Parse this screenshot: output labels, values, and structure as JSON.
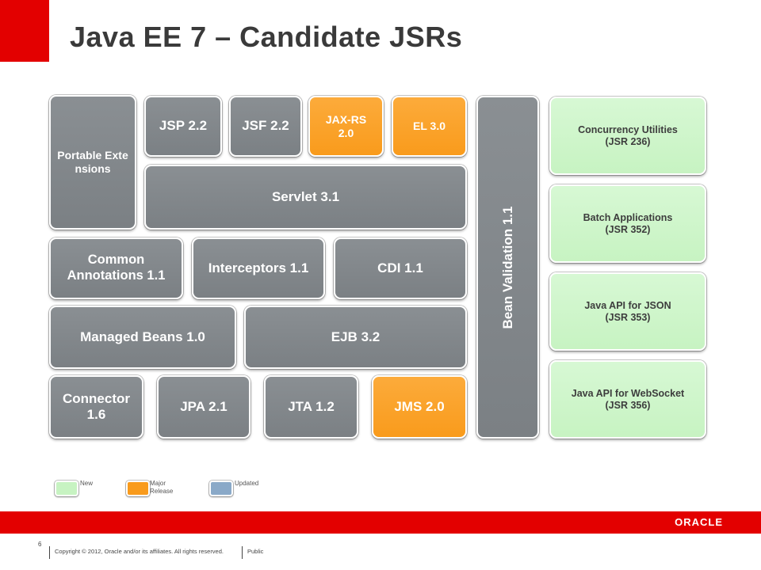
{
  "slide": {
    "title": "Java EE 7 – Candidate JSRs",
    "page_number": "6",
    "copyright": "Copyright © 2012, Oracle and/or its affiliates. All rights reserved.",
    "classification": "Public",
    "logo": "ORACLE"
  },
  "colors": {
    "new": "#c7f3c2",
    "major_release": "#f99b1c",
    "updated": "#8aa9c8",
    "gray_box": "#7f8488",
    "brand_red": "#e30000"
  },
  "boxes": {
    "portable_extensions": "Portable Extensions",
    "jsp": "JSP 2.2",
    "jsf": "JSF 2.2",
    "jaxrs": "JAX-RS 2.0",
    "el": "EL 3.0",
    "servlet": "Servlet 3.1",
    "common_annotations": "Common Annotations 1.1",
    "interceptors": "Interceptors 1.1",
    "cdi": "CDI 1.1",
    "managed_beans": "Managed Beans 1.0",
    "ejb": "EJB 3.2",
    "connector": "Connector 1.6",
    "jpa": "JPA 2.1",
    "jta": "JTA 1.2",
    "jms": "JMS 2.0",
    "bean_validation": "Bean Validation 1.1"
  },
  "new_jsrs": [
    {
      "name": "Concurrency Utilities",
      "jsr": "(JSR 236)"
    },
    {
      "name": "Batch Applications",
      "jsr": "(JSR 352)"
    },
    {
      "name": "Java API for JSON",
      "jsr": "(JSR 353)"
    },
    {
      "name": "Java API for WebSocket",
      "jsr": "(JSR 356)"
    }
  ],
  "legend": {
    "new": "New",
    "major_release": "Major Release",
    "updated": "Updated"
  }
}
